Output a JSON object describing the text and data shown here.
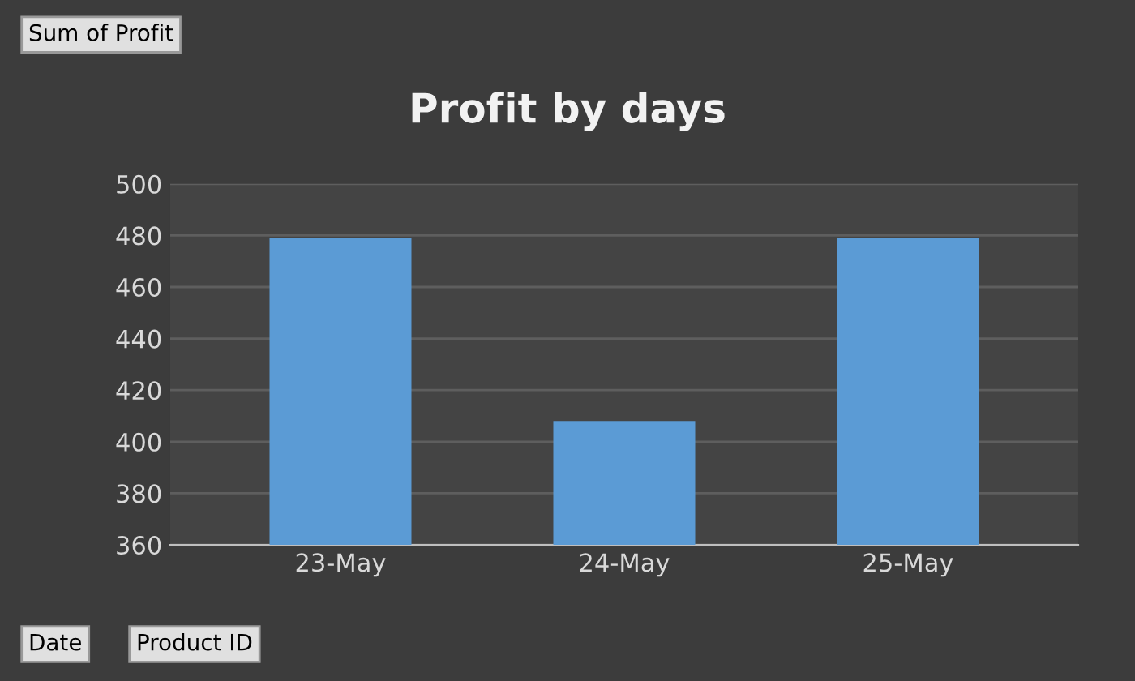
{
  "chart_data": {
    "type": "bar",
    "title": "Profit by days",
    "categories": [
      "23-May",
      "24-May",
      "25-May"
    ],
    "values": [
      479,
      408,
      479
    ],
    "color": "#5b9bd5",
    "ylim": [
      360,
      500
    ],
    "yticks": [
      360,
      380,
      400,
      420,
      440,
      460,
      480,
      500
    ],
    "grid": "y",
    "annotations": [
      "Sum of Profit",
      "Date",
      "Product ID"
    ]
  }
}
